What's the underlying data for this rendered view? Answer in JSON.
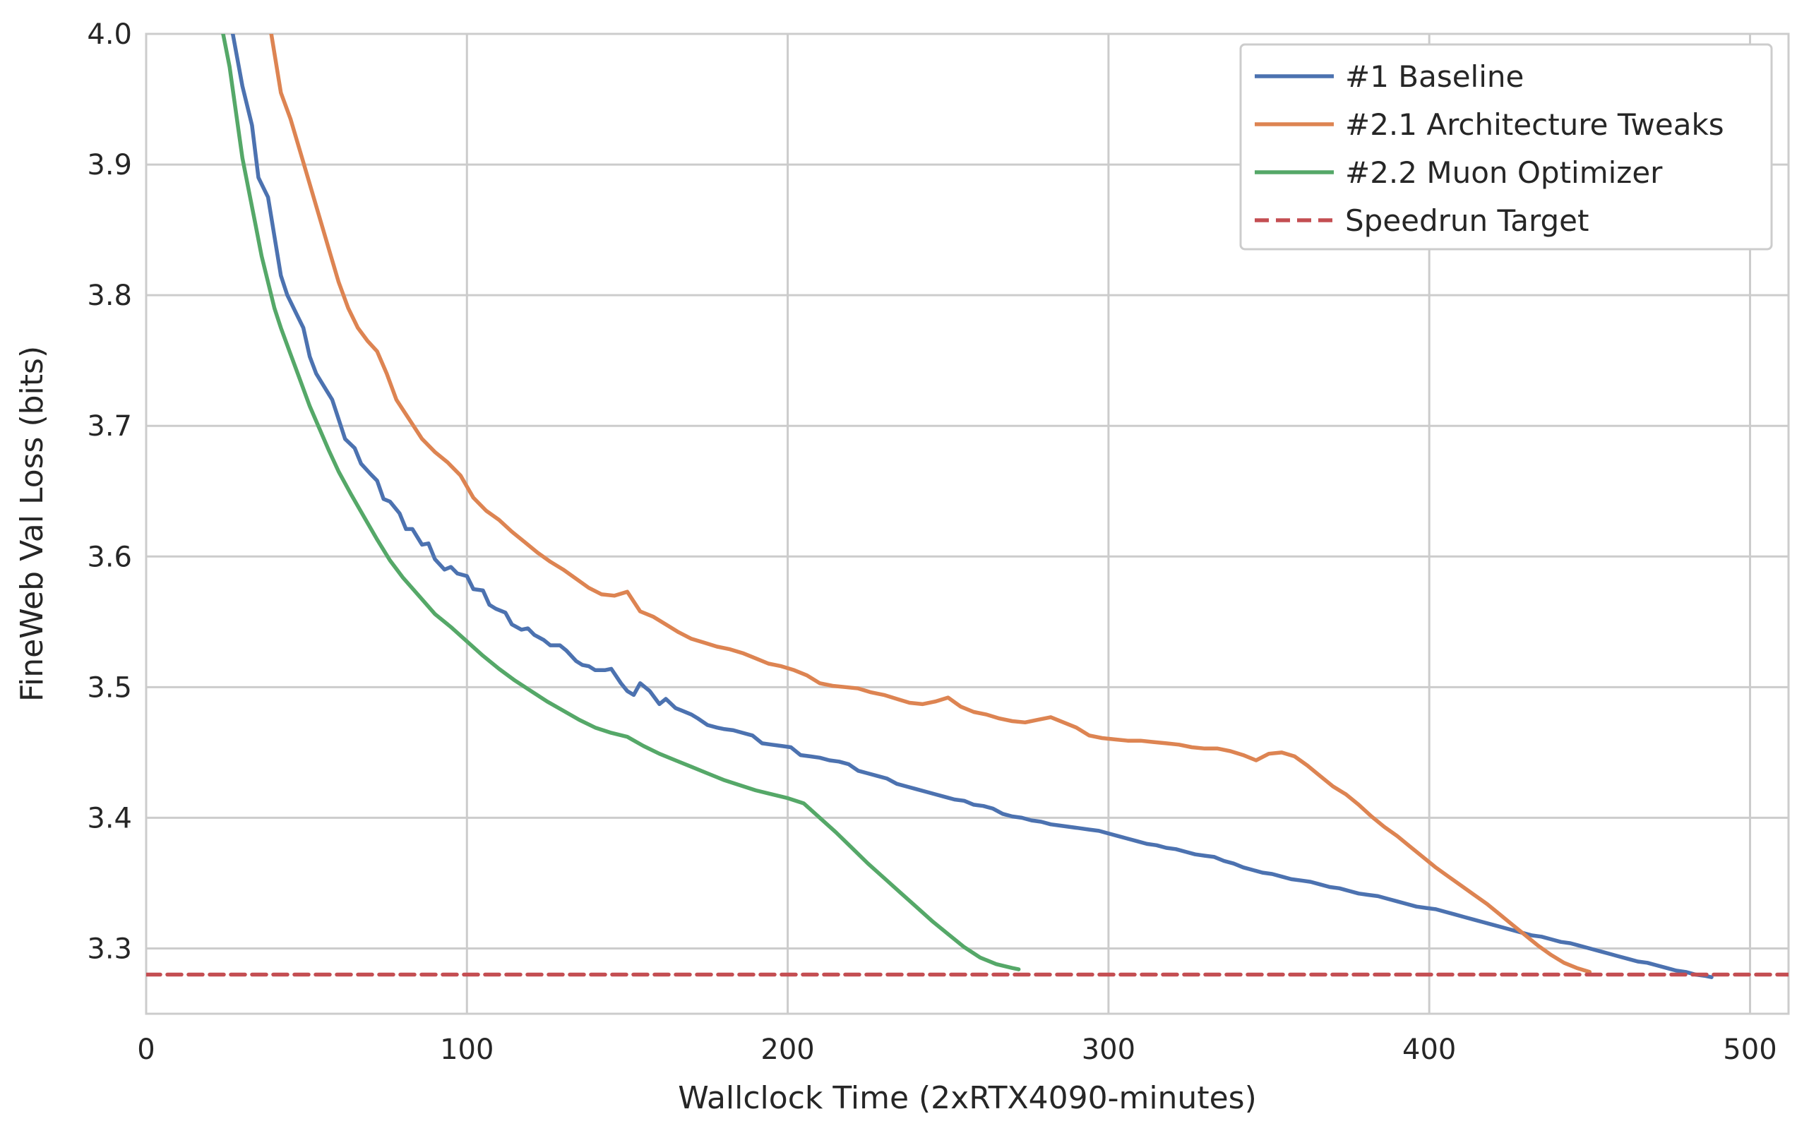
{
  "chart_data": {
    "type": "line",
    "title": "",
    "xlabel": "Wallclock Time (2xRTX4090-minutes)",
    "ylabel": "FineWeb Val Loss (bits)",
    "xlim": [
      0,
      512
    ],
    "ylim": [
      3.25,
      4.0
    ],
    "xticks": [
      0,
      100,
      200,
      300,
      400,
      500
    ],
    "yticks": [
      3.3,
      3.4,
      3.5,
      3.6,
      3.7,
      3.8,
      3.9,
      4.0
    ],
    "xtick_labels": [
      "0",
      "100",
      "200",
      "300",
      "400",
      "500"
    ],
    "ytick_labels": [
      "3.3",
      "3.4",
      "3.5",
      "3.6",
      "3.7",
      "3.8",
      "3.9",
      "4.0"
    ],
    "grid": true,
    "legend_position": "top-right",
    "series": [
      {
        "name": "#1 Baseline",
        "color": "#4c72b0",
        "style": "solid",
        "x": [
          27,
          30,
          33,
          35,
          38,
          40,
          42,
          44,
          47,
          49,
          51,
          53,
          56,
          58,
          60,
          62,
          65,
          67,
          70,
          72,
          74,
          76,
          79,
          81,
          83,
          86,
          88,
          90,
          93,
          95,
          97,
          100,
          102,
          105,
          107,
          109,
          112,
          114,
          117,
          119,
          121,
          124,
          126,
          129,
          131,
          134,
          136,
          138,
          140,
          143,
          145,
          148,
          150,
          152,
          154,
          157,
          160,
          162,
          165,
          167,
          170,
          172,
          175,
          178,
          180,
          183,
          186,
          189,
          192,
          195,
          198,
          201,
          204,
          207,
          210,
          213,
          216,
          219,
          222,
          225,
          228,
          231,
          234,
          237,
          240,
          243,
          246,
          249,
          252,
          255,
          258,
          261,
          264,
          267,
          270,
          273,
          276,
          279,
          282,
          285,
          288,
          291,
          294,
          297,
          300,
          303,
          306,
          309,
          312,
          315,
          318,
          321,
          324,
          327,
          330,
          333,
          336,
          339,
          342,
          345,
          348,
          351,
          354,
          357,
          360,
          363,
          366,
          369,
          372,
          375,
          378,
          381,
          384,
          387,
          390,
          393,
          396,
          399,
          402,
          405,
          408,
          411,
          414,
          417,
          420,
          423,
          426,
          429,
          432,
          435,
          438,
          441,
          444,
          447,
          450,
          453,
          456,
          459,
          462,
          465,
          468,
          471,
          474,
          477,
          480,
          483,
          486,
          488
        ],
        "y": [
          4.0,
          3.96,
          3.93,
          3.89,
          3.875,
          3.845,
          3.815,
          3.8,
          3.785,
          3.775,
          3.753,
          3.74,
          3.728,
          3.72,
          3.705,
          3.69,
          3.683,
          3.671,
          3.663,
          3.658,
          3.644,
          3.642,
          3.633,
          3.621,
          3.621,
          3.609,
          3.61,
          3.598,
          3.59,
          3.592,
          3.587,
          3.585,
          3.575,
          3.574,
          3.563,
          3.56,
          3.557,
          3.548,
          3.544,
          3.545,
          3.54,
          3.536,
          3.532,
          3.532,
          3.528,
          3.52,
          3.517,
          3.516,
          3.513,
          3.513,
          3.514,
          3.503,
          3.497,
          3.494,
          3.503,
          3.497,
          3.487,
          3.491,
          3.484,
          3.482,
          3.479,
          3.476,
          3.471,
          3.469,
          3.468,
          3.467,
          3.465,
          3.463,
          3.457,
          3.456,
          3.455,
          3.454,
          3.448,
          3.447,
          3.446,
          3.444,
          3.443,
          3.441,
          3.436,
          3.434,
          3.432,
          3.43,
          3.426,
          3.424,
          3.422,
          3.42,
          3.418,
          3.416,
          3.414,
          3.413,
          3.41,
          3.409,
          3.407,
          3.403,
          3.401,
          3.4,
          3.398,
          3.397,
          3.395,
          3.394,
          3.393,
          3.392,
          3.391,
          3.39,
          3.388,
          3.386,
          3.384,
          3.382,
          3.38,
          3.379,
          3.377,
          3.376,
          3.374,
          3.372,
          3.371,
          3.37,
          3.367,
          3.365,
          3.362,
          3.36,
          3.358,
          3.357,
          3.355,
          3.353,
          3.352,
          3.351,
          3.349,
          3.347,
          3.346,
          3.344,
          3.342,
          3.341,
          3.34,
          3.338,
          3.336,
          3.334,
          3.332,
          3.331,
          3.33,
          3.328,
          3.326,
          3.324,
          3.322,
          3.32,
          3.318,
          3.316,
          3.314,
          3.312,
          3.31,
          3.309,
          3.307,
          3.305,
          3.304,
          3.302,
          3.3,
          3.298,
          3.296,
          3.294,
          3.292,
          3.29,
          3.289,
          3.287,
          3.285,
          3.283,
          3.282,
          3.28,
          3.279,
          3.278
        ]
      },
      {
        "name": "#2.1 Architecture Tweaks",
        "color": "#dd8452",
        "style": "solid",
        "x": [
          39,
          42,
          45,
          48,
          51,
          54,
          57,
          60,
          63,
          66,
          69,
          72,
          75,
          78,
          82,
          86,
          90,
          94,
          98,
          102,
          106,
          110,
          114,
          118,
          122,
          126,
          130,
          134,
          138,
          142,
          146,
          150,
          154,
          158,
          162,
          166,
          170,
          174,
          178,
          182,
          186,
          190,
          194,
          198,
          202,
          206,
          210,
          214,
          218,
          222,
          226,
          230,
          234,
          238,
          242,
          246,
          250,
          254,
          258,
          262,
          266,
          270,
          274,
          278,
          282,
          286,
          290,
          294,
          298,
          302,
          306,
          310,
          314,
          318,
          322,
          326,
          330,
          334,
          338,
          342,
          346,
          350,
          354,
          358,
          362,
          366,
          370,
          374,
          378,
          382,
          386,
          390,
          394,
          398,
          402,
          406,
          410,
          414,
          418,
          422,
          426,
          430,
          434,
          438,
          442,
          446,
          450
        ],
        "y": [
          4.0,
          3.955,
          3.935,
          3.91,
          3.885,
          3.86,
          3.835,
          3.81,
          3.79,
          3.775,
          3.765,
          3.757,
          3.74,
          3.72,
          3.705,
          3.69,
          3.68,
          3.672,
          3.662,
          3.645,
          3.635,
          3.628,
          3.619,
          3.611,
          3.603,
          3.596,
          3.59,
          3.583,
          3.576,
          3.571,
          3.57,
          3.573,
          3.558,
          3.554,
          3.548,
          3.542,
          3.537,
          3.534,
          3.531,
          3.529,
          3.526,
          3.522,
          3.518,
          3.516,
          3.513,
          3.509,
          3.503,
          3.501,
          3.5,
          3.499,
          3.496,
          3.494,
          3.491,
          3.488,
          3.487,
          3.489,
          3.492,
          3.485,
          3.481,
          3.479,
          3.476,
          3.474,
          3.473,
          3.475,
          3.477,
          3.473,
          3.469,
          3.463,
          3.461,
          3.46,
          3.459,
          3.459,
          3.458,
          3.457,
          3.456,
          3.454,
          3.453,
          3.453,
          3.451,
          3.448,
          3.444,
          3.449,
          3.45,
          3.447,
          3.44,
          3.432,
          3.424,
          3.418,
          3.41,
          3.401,
          3.393,
          3.386,
          3.378,
          3.37,
          3.362,
          3.355,
          3.348,
          3.341,
          3.334,
          3.326,
          3.318,
          3.31,
          3.302,
          3.295,
          3.289,
          3.285,
          3.282
        ]
      },
      {
        "name": "#2.2 Muon Optimizer",
        "color": "#55a868",
        "style": "solid",
        "x": [
          24,
          26,
          28,
          30,
          32,
          34,
          36,
          38,
          40,
          42,
          45,
          48,
          51,
          54,
          57,
          60,
          64,
          68,
          72,
          76,
          80,
          85,
          90,
          95,
          100,
          105,
          110,
          115,
          120,
          125,
          130,
          135,
          140,
          145,
          150,
          155,
          160,
          165,
          170,
          175,
          180,
          185,
          190,
          195,
          200,
          205,
          210,
          215,
          220,
          225,
          230,
          235,
          240,
          245,
          250,
          255,
          260,
          265,
          270,
          272
        ],
        "y": [
          4.0,
          3.975,
          3.94,
          3.905,
          3.88,
          3.855,
          3.83,
          3.81,
          3.79,
          3.775,
          3.755,
          3.735,
          3.715,
          3.698,
          3.681,
          3.665,
          3.647,
          3.63,
          3.613,
          3.597,
          3.584,
          3.57,
          3.556,
          3.546,
          3.535,
          3.524,
          3.514,
          3.505,
          3.497,
          3.489,
          3.482,
          3.475,
          3.469,
          3.465,
          3.462,
          3.455,
          3.449,
          3.444,
          3.439,
          3.434,
          3.429,
          3.425,
          3.421,
          3.418,
          3.415,
          3.411,
          3.4,
          3.389,
          3.377,
          3.365,
          3.354,
          3.343,
          3.332,
          3.321,
          3.311,
          3.301,
          3.293,
          3.288,
          3.285,
          3.284
        ]
      },
      {
        "name": "Speedrun Target",
        "color": "#c44e52",
        "style": "dashed",
        "x": [
          0,
          512
        ],
        "y": [
          3.28,
          3.28
        ]
      }
    ]
  }
}
